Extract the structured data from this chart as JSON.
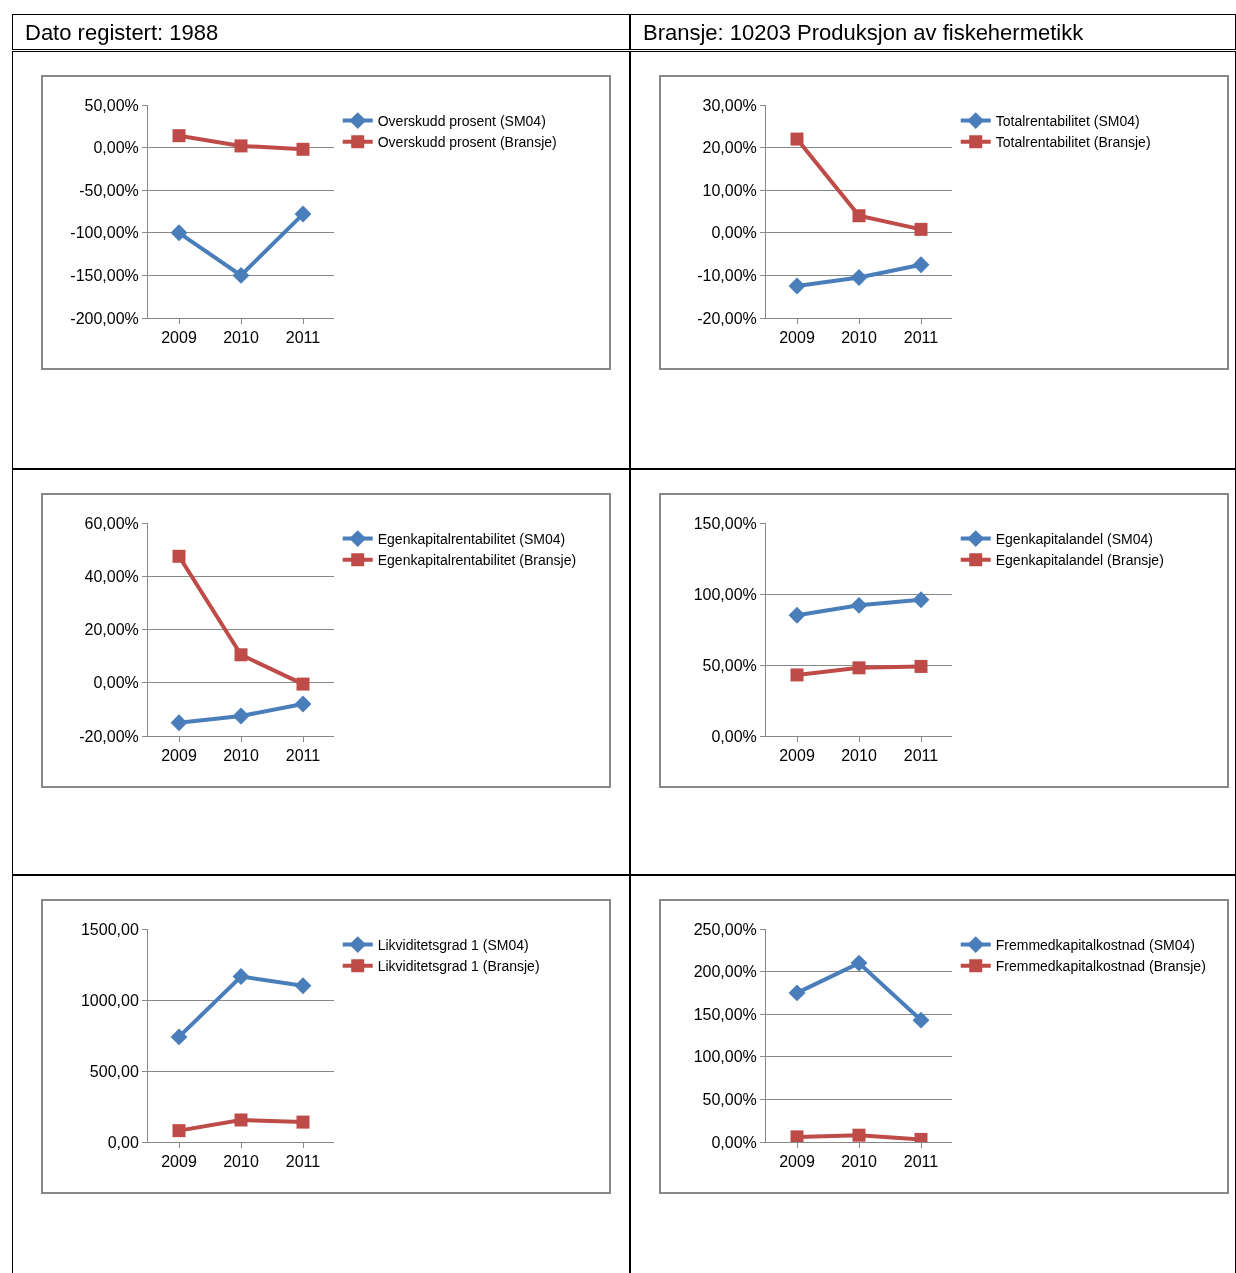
{
  "chart_data": [
    {
      "type": "other",
      "annotations": [
        "Dato registert: 1988",
        "Bransje: 10203 Produksjon av fiskehermetikk"
      ]
    },
    {
      "type": "line",
      "categories": [
        "2009",
        "2010",
        "2011"
      ],
      "ylim": [
        -200,
        50
      ],
      "yticks": [
        {
          "value": -200,
          "label": "-200,00%"
        },
        {
          "value": -150,
          "label": "-150,00%"
        },
        {
          "value": -100,
          "label": "-100,00%"
        },
        {
          "value": -50,
          "label": "-50,00%"
        },
        {
          "value": 0,
          "label": "0,00%"
        },
        {
          "value": 50,
          "label": "50,00%"
        }
      ],
      "grid": "y",
      "legend": "right",
      "series": [
        {
          "name": "Overskudd prosent (SM04)",
          "color": "#4a7ebb",
          "marker": "diamond",
          "values": [
            -100,
            -150,
            -78
          ]
        },
        {
          "name": "Overskudd prosent (Bransje)",
          "color": "#be4b48",
          "marker": "square",
          "values": [
            14,
            2,
            -2
          ]
        }
      ]
    },
    {
      "type": "line",
      "categories": [
        "2009",
        "2010",
        "2011"
      ],
      "ylim": [
        -20,
        30
      ],
      "yticks": [
        {
          "value": -20,
          "label": "-20,00%"
        },
        {
          "value": -10,
          "label": "-10,00%"
        },
        {
          "value": 0,
          "label": "0,00%"
        },
        {
          "value": 10,
          "label": "10,00%"
        },
        {
          "value": 20,
          "label": "20,00%"
        },
        {
          "value": 30,
          "label": "30,00%"
        }
      ],
      "grid": "y",
      "legend": "right",
      "series": [
        {
          "name": "Totalrentabilitet (SM04)",
          "color": "#4a7ebb",
          "marker": "diamond",
          "values": [
            -12.5,
            -10.5,
            -7.5
          ]
        },
        {
          "name": "Totalrentabilitet (Bransje)",
          "color": "#be4b48",
          "marker": "square",
          "values": [
            22,
            4,
            0.8
          ]
        }
      ]
    },
    {
      "type": "line",
      "categories": [
        "2009",
        "2010",
        "2011"
      ],
      "ylim": [
        -20,
        60
      ],
      "yticks": [
        {
          "value": -20,
          "label": "-20,00%"
        },
        {
          "value": 0,
          "label": "0,00%"
        },
        {
          "value": 20,
          "label": "20,00%"
        },
        {
          "value": 40,
          "label": "40,00%"
        },
        {
          "value": 60,
          "label": "60,00%"
        }
      ],
      "grid": "y",
      "legend": "right",
      "series": [
        {
          "name": "Egenkapitalrentabilitet (SM04)",
          "color": "#4a7ebb",
          "marker": "diamond",
          "values": [
            -15,
            -12.5,
            -8
          ]
        },
        {
          "name": "Egenkapitalrentabilitet (Bransje)",
          "color": "#be4b48",
          "marker": "square",
          "values": [
            47.5,
            10.5,
            -0.5
          ]
        }
      ]
    },
    {
      "type": "line",
      "categories": [
        "2009",
        "2010",
        "2011"
      ],
      "ylim": [
        0,
        150
      ],
      "yticks": [
        {
          "value": 0,
          "label": "0,00%"
        },
        {
          "value": 50,
          "label": "50,00%"
        },
        {
          "value": 100,
          "label": "100,00%"
        },
        {
          "value": 150,
          "label": "150,00%"
        }
      ],
      "grid": "y",
      "legend": "right",
      "series": [
        {
          "name": "Egenkapitalandel (SM04)",
          "color": "#4a7ebb",
          "marker": "diamond",
          "values": [
            85,
            92,
            96
          ]
        },
        {
          "name": "Egenkapitalandel (Bransje)",
          "color": "#be4b48",
          "marker": "square",
          "values": [
            43,
            48,
            49
          ]
        }
      ]
    },
    {
      "type": "line",
      "categories": [
        "2009",
        "2010",
        "2011"
      ],
      "ylim": [
        0,
        1500
      ],
      "yticks": [
        {
          "value": 0,
          "label": "0,00"
        },
        {
          "value": 500,
          "label": "500,00"
        },
        {
          "value": 1000,
          "label": "1000,00"
        },
        {
          "value": 1500,
          "label": "1500,00"
        }
      ],
      "grid": "y",
      "legend": "right",
      "series": [
        {
          "name": "Likviditetsgrad 1 (SM04)",
          "color": "#4a7ebb",
          "marker": "diamond",
          "values": [
            740,
            1165,
            1100
          ]
        },
        {
          "name": "Likviditetsgrad 1 (Bransje)",
          "color": "#be4b48",
          "marker": "square",
          "values": [
            80,
            155,
            140
          ]
        }
      ]
    },
    {
      "type": "line",
      "categories": [
        "2009",
        "2010",
        "2011"
      ],
      "ylim": [
        0,
        250
      ],
      "yticks": [
        {
          "value": 0,
          "label": "0,00%"
        },
        {
          "value": 50,
          "label": "50,00%"
        },
        {
          "value": 100,
          "label": "100,00%"
        },
        {
          "value": 150,
          "label": "150,00%"
        },
        {
          "value": 200,
          "label": "200,00%"
        },
        {
          "value": 250,
          "label": "250,00%"
        }
      ],
      "grid": "y",
      "legend": "right",
      "series": [
        {
          "name": "Fremmedkapitalkostnad (SM04)",
          "color": "#4a7ebb",
          "marker": "diamond",
          "values": [
            175,
            210,
            143
          ]
        },
        {
          "name": "Fremmedkapitalkostnad (Bransje)",
          "color": "#be4b48",
          "marker": "square",
          "values": [
            6,
            8,
            3
          ]
        }
      ]
    }
  ]
}
